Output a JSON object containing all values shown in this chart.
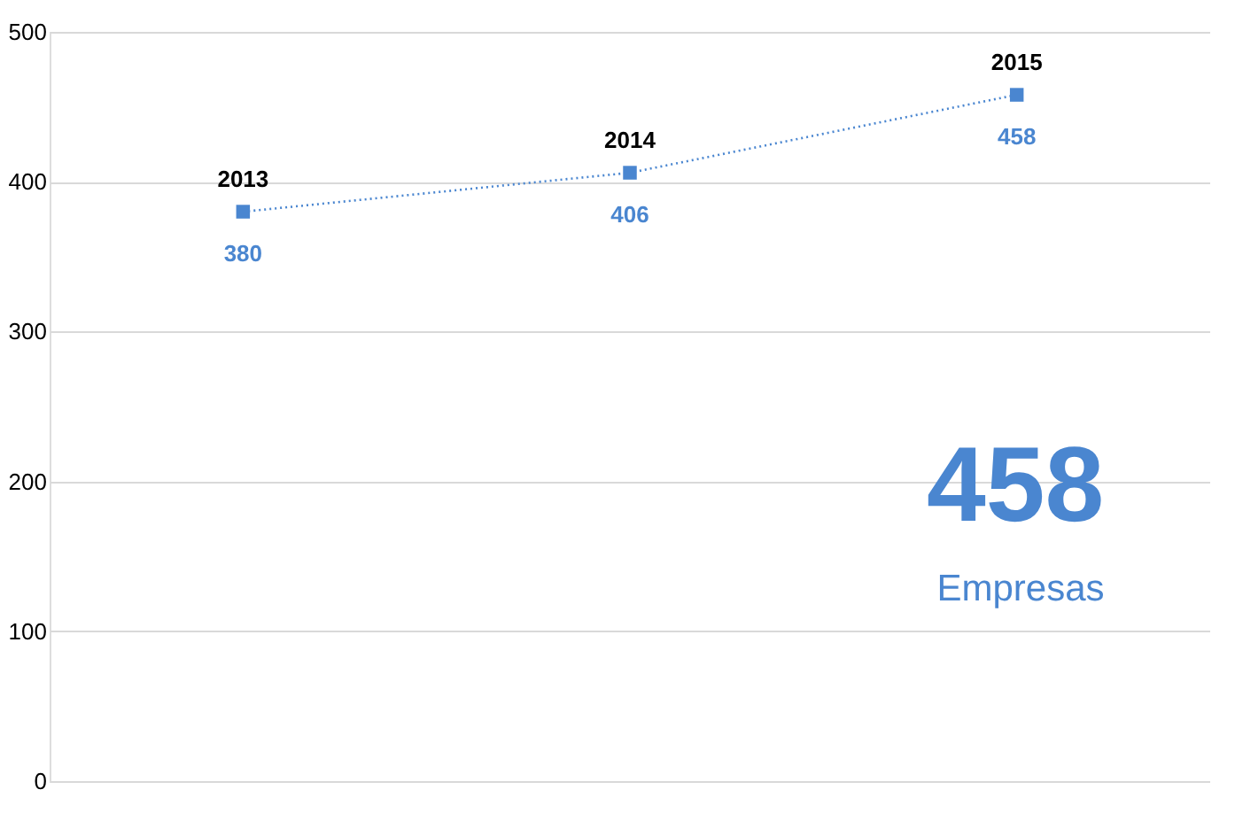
{
  "chart_data": {
    "type": "line",
    "categories": [
      "2013",
      "2014",
      "2015"
    ],
    "series": [
      {
        "color": "#4a86d0",
        "values": [
          380,
          406,
          458
        ]
      }
    ],
    "line_style": "dotted",
    "data_labels": true,
    "tick_labels": "y",
    "ylim": [
      0,
      500
    ],
    "yticks": [
      0,
      100,
      200,
      300,
      400,
      500
    ],
    "grid": "y",
    "marker": "square",
    "annotations": [
      "458",
      "Empresas"
    ]
  }
}
